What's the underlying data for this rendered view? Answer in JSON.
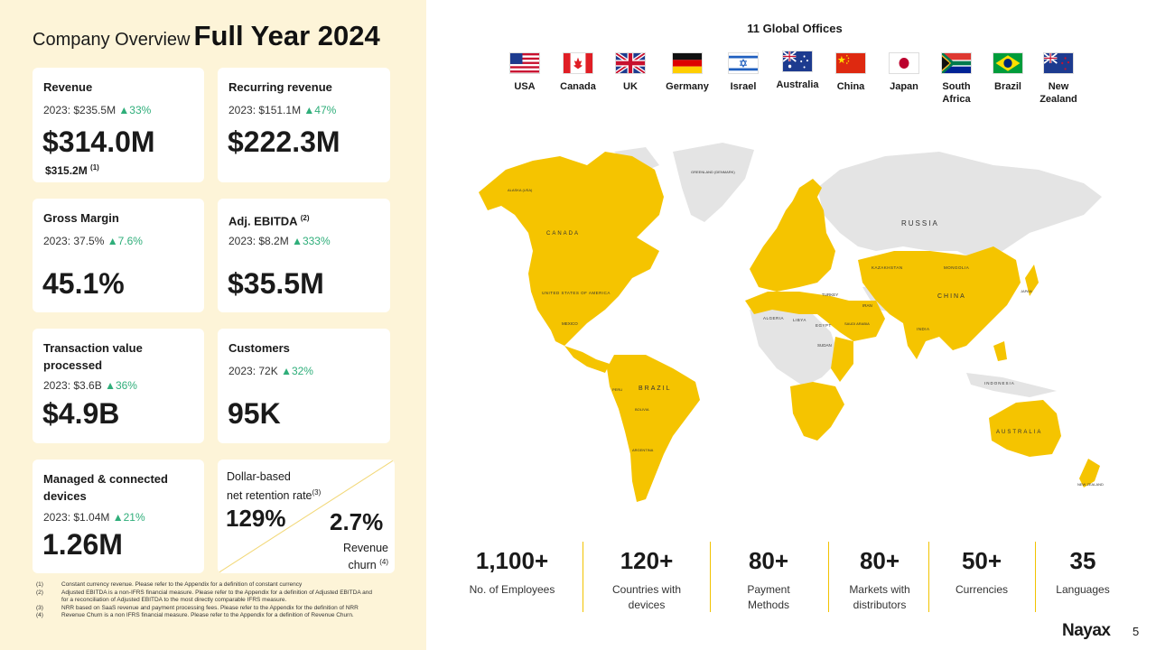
{
  "title": {
    "light": "Company Overview",
    "bold": "Full Year 2024"
  },
  "kpis": {
    "revenue": {
      "label": "Revenue",
      "prev": "2023: $235.5M",
      "growth": "▲33%",
      "value": "$314.0M",
      "note": "$315.2M",
      "note_ref": "(1)"
    },
    "recurring": {
      "label": "Recurring revenue",
      "prev": "2023: $151.1M",
      "growth": "▲47%",
      "value": "$222.3M"
    },
    "gross_margin": {
      "label": "Gross Margin",
      "prev": "2023: 37.5%",
      "growth": "▲7.6%",
      "value": "45.1%"
    },
    "ebitda": {
      "label": "Adj. EBITDA",
      "label_ref": "(2)",
      "prev": "2023: $8.2M",
      "growth": "▲333%",
      "value": "$35.5M"
    },
    "transaction": {
      "label_line1": "Transaction value",
      "label_line2": "processed",
      "prev": "2023: $3.6B",
      "growth": "▲36%",
      "value": "$4.9B"
    },
    "customers": {
      "label": "Customers",
      "prev": "2023: 72K",
      "growth": "▲32%",
      "value": "95K"
    },
    "devices": {
      "label_line1": "Managed & connected",
      "label_line2": "devices",
      "prev": "2023: $1.04M",
      "growth": "▲21%",
      "value": "1.26M"
    },
    "retention": {
      "label_line1": "Dollar-based",
      "label_line2": "net retention rate",
      "label_ref": "(3)",
      "value": "129%",
      "churn_value": "2.7%",
      "churn_line1": "Revenue",
      "churn_line2": "churn",
      "churn_ref": "(4)"
    }
  },
  "footnotes": [
    {
      "num": "(1)",
      "text": "Constant currency revenue. Please refer to the Appendix for a definition of constant currency"
    },
    {
      "num": "(2)",
      "text": "Adjusted EBITDA is a non-IFRS financial measure. Please refer to the Appendix for a definition of Adjusted EBITDA and for a reconciliation of Adjusted EBITDA to the most directly comparable IFRS measure."
    },
    {
      "num": "(3)",
      "text": "NRR based on SaaS revenue and payment processing fees. Please refer to the Appendix for the definition of NRR"
    },
    {
      "num": "(4)",
      "text": "Revenue Churn is a non IFRS financial measure. Please refer to the Appendix for a definition of Revenue Churn."
    }
  ],
  "offices": {
    "title": "11 Global Offices",
    "countries": [
      {
        "name": "USA",
        "icon": "usa-flag-icon"
      },
      {
        "name": "Canada",
        "icon": "canada-flag-icon"
      },
      {
        "name": "UK",
        "icon": "uk-flag-icon"
      },
      {
        "name": "Germany",
        "icon": "germany-flag-icon"
      },
      {
        "name": "Israel",
        "icon": "israel-flag-icon"
      },
      {
        "name": "Australia",
        "icon": "australia-flag-icon"
      },
      {
        "name": "China",
        "icon": "china-flag-icon"
      },
      {
        "name": "Japan",
        "icon": "japan-flag-icon"
      },
      {
        "name": "South",
        "name2": "Africa",
        "icon": "south-africa-flag-icon"
      },
      {
        "name": "Brazil",
        "icon": "brazil-flag-icon"
      },
      {
        "name": "New",
        "name2": "Zealand",
        "icon": "new-zealand-flag-icon"
      }
    ]
  },
  "map": {
    "labels": {
      "canada": "CANADA",
      "russia": "RUSSIA",
      "usa": "UNITED STATES OF AMERICA",
      "china": "CHINA",
      "brazil": "BRAZIL",
      "australia": "AUSTRALIA",
      "alaska": "ALASKA (USA)",
      "greenland": "GREENLAND (DENMARK)",
      "kazakhstan": "KAZAKHSTAN",
      "mongolia": "MONGOLIA",
      "india": "INDIA",
      "indonesia": "INDONESIA",
      "mexico": "MEXICO",
      "algeria": "ALGERIA",
      "libya": "LIBYA",
      "egypt": "EGYPT",
      "sudan": "SUDAN",
      "turkey": "TURKEY",
      "iran": "IRAN",
      "saudi": "SAUDI ARABIA",
      "bolivia": "BOLIVIA",
      "peru": "PERU",
      "argentina": "ARGENTINA",
      "japan": "JAPAN",
      "new_zealand": "NEW ZEALAND"
    },
    "highlight_color": "#f5c400",
    "other_color": "#e4e4e4"
  },
  "stats": [
    {
      "value": "1,100+",
      "label1": "No. of Employees",
      "label2": ""
    },
    {
      "value": "120+",
      "label1": "Countries with",
      "label2": "devices"
    },
    {
      "value": "80+",
      "label1": "Payment",
      "label2": "Methods"
    },
    {
      "value": "80+",
      "label1": "Markets with",
      "label2": "distributors"
    },
    {
      "value": "50+",
      "label1": "Currencies",
      "label2": ""
    },
    {
      "value": "35",
      "label1": "Languages",
      "label2": ""
    }
  ],
  "brand": {
    "logo": "Nayax",
    "page": "5"
  },
  "colors": {
    "accent": "#f5c400",
    "growth_green": "#2fae7a",
    "panel_bg": "#fdf4d8"
  }
}
